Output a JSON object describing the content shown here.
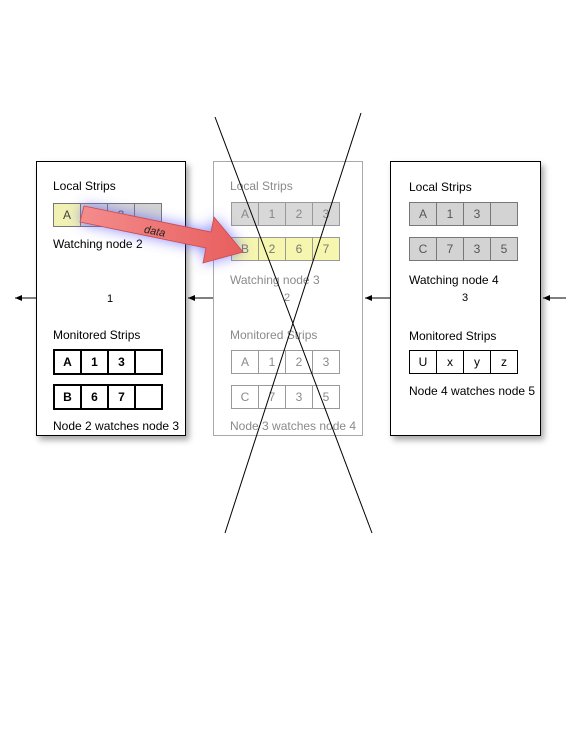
{
  "nodes": [
    {
      "local_title": "Local Strips",
      "local_strips": [
        [
          "A",
          "",
          "3",
          ""
        ]
      ],
      "watching": "Watching node 2",
      "number": "1",
      "monitored_title": "Monitored Strips",
      "monitored_strips": [
        [
          "A",
          "1",
          "3",
          ""
        ],
        [
          "B",
          "6",
          "7",
          ""
        ]
      ],
      "footer": "Node 2 watches node 3"
    },
    {
      "local_title": "Local Strips",
      "local_strips": [
        [
          "A",
          "1",
          "2",
          "3"
        ],
        [
          "B",
          "2",
          "6",
          "7"
        ]
      ],
      "watching": "Watching node 3",
      "number": "2",
      "monitored_title": "Monitored Strips",
      "monitored_strips": [
        [
          "A",
          "1",
          "2",
          "3"
        ],
        [
          "C",
          "7",
          "3",
          "5"
        ]
      ],
      "footer": "Node 3 watches node 4",
      "crossed_out": true
    },
    {
      "local_title": "Local Strips",
      "local_strips": [
        [
          "A",
          "1",
          "3",
          ""
        ],
        [
          "C",
          "7",
          "3",
          "5"
        ]
      ],
      "watching": "Watching node 4",
      "number": "3",
      "monitored_title": "Monitored Strips",
      "monitored_strips": [
        [
          "U",
          "x",
          "y",
          "z"
        ]
      ],
      "footer": "Node 4 watches node 5"
    }
  ],
  "arrow_label": "data",
  "colors": {
    "highlight_yellow": "#f7f7b0",
    "strip_gray": "#d3d3d3",
    "data_arrow": "#f07878",
    "data_glow": "#5a5aff"
  }
}
